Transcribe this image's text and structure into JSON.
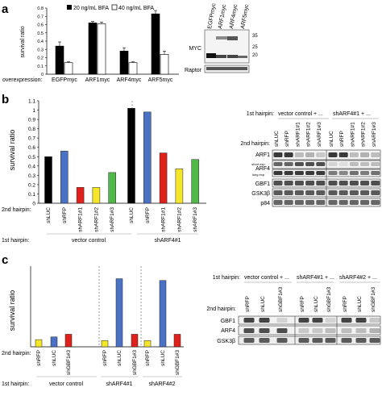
{
  "panel_labels": {
    "a": "a",
    "b": "b",
    "c": "c"
  },
  "panel_a": {
    "ylabel": "survival ratio",
    "row_label": "overexpression:",
    "legend": [
      "20 ng/mL BFA",
      "40 ng/mL BFA"
    ],
    "blot": {
      "lanes": [
        "EGFPmyc",
        "ARF1myc",
        "ARF4myc",
        "ARF5myc"
      ],
      "rows": [
        "MYC",
        "Raptor"
      ],
      "markers": [
        "35",
        "25",
        "20"
      ]
    }
  },
  "panel_b": {
    "ylabel": "survival ratio",
    "row_labels": [
      "2nd hairpin:",
      "1st hairpin:"
    ],
    "groups": [
      "vector control",
      "shARF4#1"
    ],
    "blot": {
      "first_hairpin_label": "1st hairpin:",
      "second_hairpin_label": "2nd hairpin:",
      "groups": [
        "vector control + ...",
        "shARF4#1 + ..."
      ],
      "lanes": [
        "shLUC",
        "shRFP",
        "shARF1#1",
        "shARF1#2",
        "shARF1#3",
        "shLUC",
        "shRFP",
        "shARF1#1",
        "shARF1#2",
        "shARF1#3"
      ],
      "rows": [
        "ARF1",
        "ARF4",
        "GBF1",
        "GSK3β",
        "p84"
      ],
      "arf4_sub": [
        "short exp.",
        "long exp."
      ]
    }
  },
  "panel_c": {
    "ylabel": "survival ratio",
    "row_labels": [
      "2nd hairpin:",
      "1st hairpin:"
    ],
    "groups": [
      "vector control",
      "shARF4#1",
      "shARF4#2"
    ],
    "blot": {
      "first_hairpin_label": "1st hairpin:",
      "second_hairpin_label": "2nd hairpin:",
      "groups": [
        "vector control + ...",
        "shARF4#1 + ...",
        "shARF4#2 + ..."
      ],
      "lanes": [
        "shRFP",
        "shLUC",
        "shGBF1#3",
        "shRFP",
        "shLUC",
        "shGBF1#3",
        "shRFP",
        "shLUC",
        "shGBF1#3"
      ],
      "rows": [
        "GBF1",
        "ARF4",
        "GSK3β"
      ]
    }
  },
  "chart_data": [
    {
      "type": "bar",
      "panel": "a",
      "categories": [
        "EGFPmyc",
        "ARF1myc",
        "ARF4myc",
        "ARF5myc"
      ],
      "series": [
        {
          "name": "20 ng/mL BFA",
          "values": [
            0.34,
            0.62,
            0.28,
            0.73
          ],
          "errors": [
            0.05,
            0.02,
            0.04,
            0.04
          ],
          "color": "#000000"
        },
        {
          "name": "40 ng/mL BFA",
          "values": [
            0.14,
            0.61,
            0.14,
            0.24
          ],
          "errors": [
            0.01,
            0.02,
            0.01,
            0.04
          ],
          "color": "#ffffff"
        }
      ],
      "ylim": [
        0,
        0.8
      ],
      "ticks": [
        "0",
        "0.1",
        "0.2",
        "0.3",
        "0.4",
        "0.5",
        "0.6",
        "0.7",
        "0.8"
      ]
    },
    {
      "type": "bar",
      "panel": "b",
      "categories": [
        "shLUC",
        "shRFP",
        "shARF1#1",
        "shARF1#2",
        "shARF1#3",
        "shLUC",
        "shRFP",
        "shARF1#1",
        "shARF1#2",
        "shARF1#3"
      ],
      "values": [
        0.5,
        0.56,
        0.17,
        0.17,
        0.33,
        1.02,
        0.98,
        0.54,
        0.37,
        0.47
      ],
      "colors": [
        "#000000",
        "#4a72c4",
        "#e0211b",
        "#f5e62a",
        "#4fb848",
        "#000000",
        "#4a72c4",
        "#e0211b",
        "#f5e62a",
        "#4fb848"
      ],
      "ylim": [
        0,
        1.1
      ],
      "ticks": [
        "0",
        "0.1",
        "0.2",
        "0.3",
        "0.4",
        "0.5",
        "0.6",
        "0.7",
        "0.8",
        "0.9",
        "1",
        "1.1"
      ]
    },
    {
      "type": "bar",
      "panel": "c",
      "categories": [
        "shRFP",
        "shLUC",
        "shGBF1#3",
        "shRFP",
        "shLUC",
        "shGBF1#3",
        "shRFP",
        "shLUC",
        "shGBF1#3"
      ],
      "values": [
        0.08,
        0.11,
        0.14,
        0.07,
        0.76,
        0.14,
        0.07,
        0.74,
        0.14
      ],
      "colors": [
        "#f5e62a",
        "#4a72c4",
        "#e0211b",
        "#f5e62a",
        "#4a72c4",
        "#e0211b",
        "#f5e62a",
        "#4a72c4",
        "#e0211b"
      ],
      "ylim": [
        0,
        0.9
      ]
    }
  ]
}
